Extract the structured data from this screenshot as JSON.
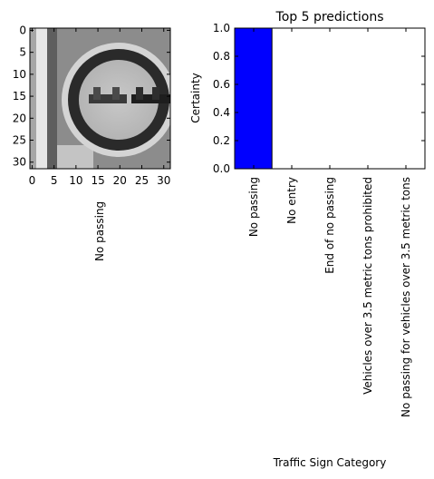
{
  "image_panel": {
    "x_ticks": [
      "0",
      "5",
      "10",
      "15",
      "20",
      "25",
      "30"
    ],
    "y_ticks": [
      "0",
      "5",
      "10",
      "15",
      "20",
      "25",
      "30"
    ],
    "xlabel": "No passing",
    "image_description": "grayscale 32x32 traffic sign image"
  },
  "chart_data": {
    "type": "bar",
    "title": "Top 5 predictions",
    "xlabel": "Traffic Sign Category",
    "ylabel": "Certainty",
    "ylim": [
      0,
      1.0
    ],
    "yticks": [
      "0.0",
      "0.2",
      "0.4",
      "0.6",
      "0.8",
      "1.0"
    ],
    "categories": [
      "No passing",
      "No entry",
      "End of no passing",
      "Vehicles over 3.5 metric tons prohibited",
      "No passing for vehicles over 3.5 metric tons"
    ],
    "values": [
      1.0,
      0.0,
      0.0,
      0.0,
      0.0
    ],
    "bar_color": "#0000ff",
    "grid": false
  }
}
